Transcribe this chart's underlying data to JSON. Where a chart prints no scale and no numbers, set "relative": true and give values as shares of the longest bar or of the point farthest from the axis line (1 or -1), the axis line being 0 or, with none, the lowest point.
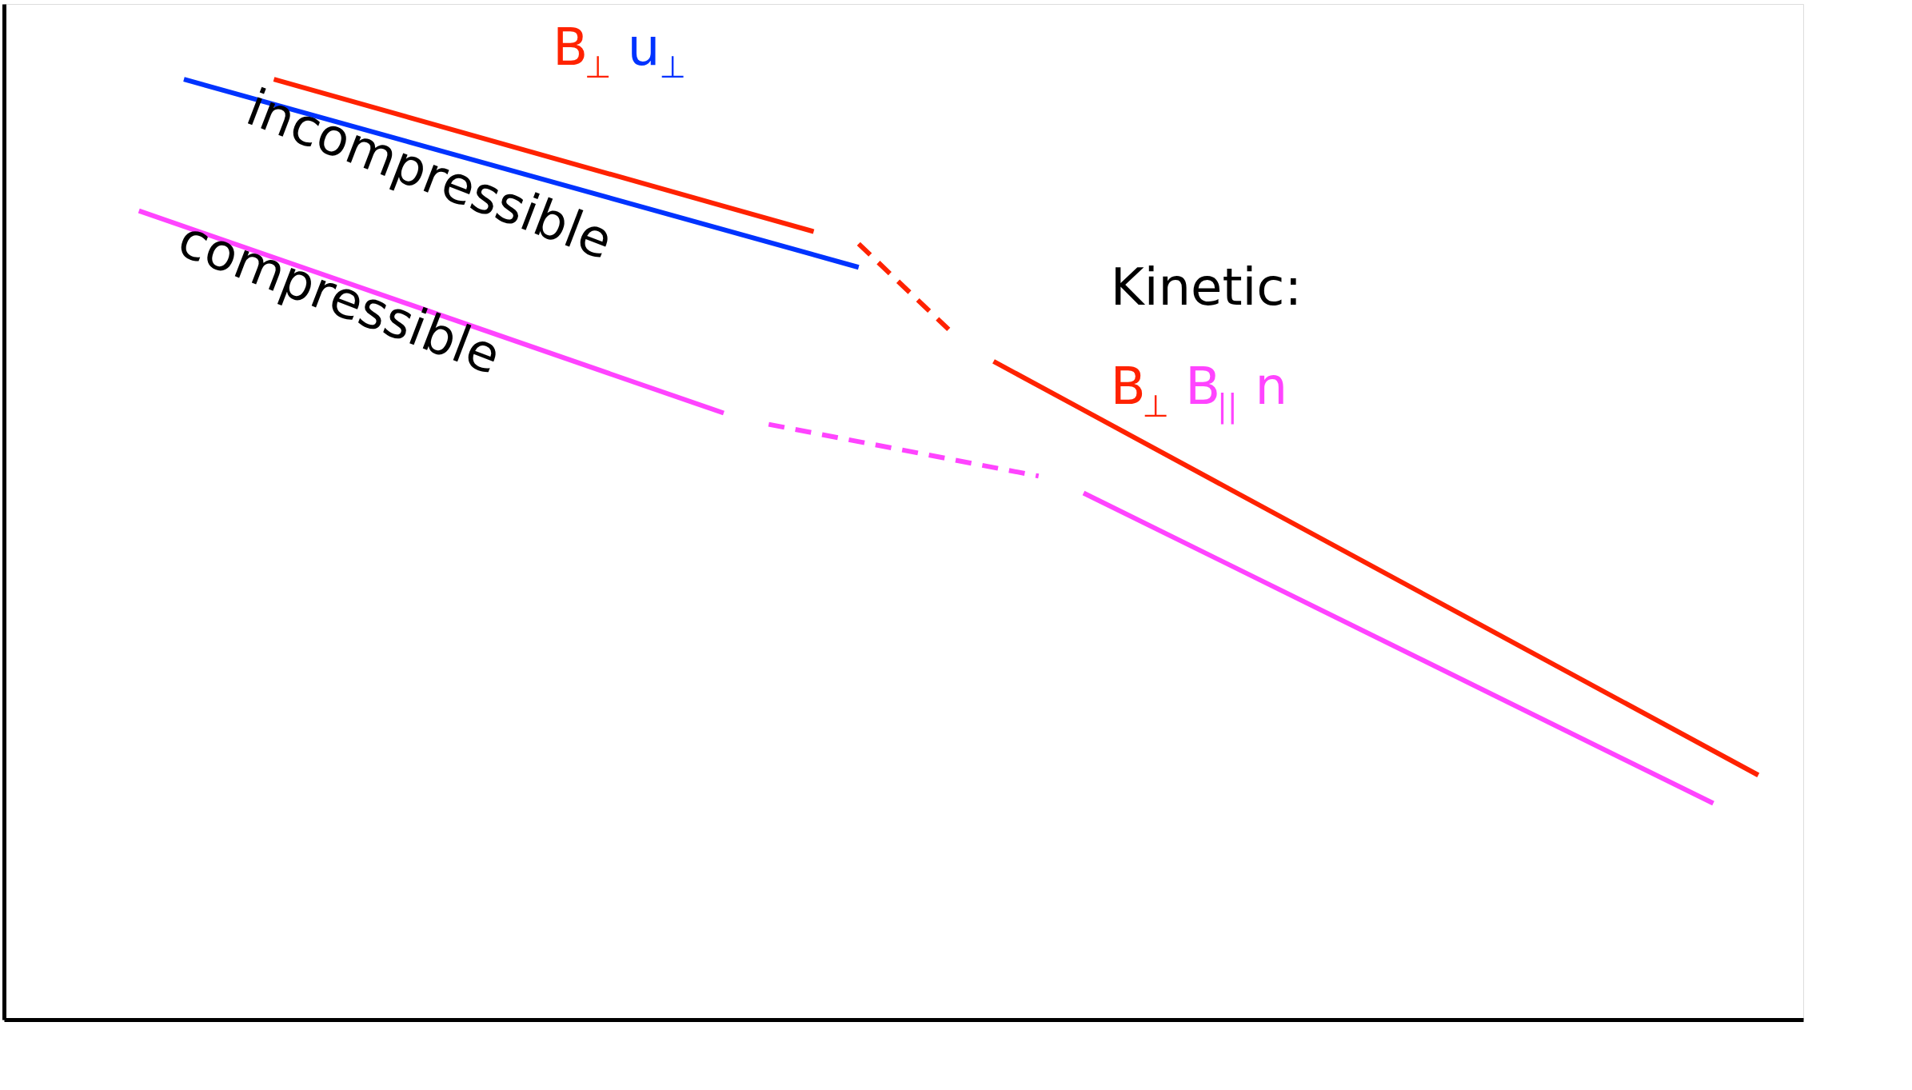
{
  "chart_data": {
    "type": "line",
    "relative": true,
    "tick_labels": false,
    "grid": false,
    "marker": "none",
    "categories": [
      null,
      null,
      null,
      null,
      null,
      null,
      null,
      null,
      null,
      null,
      null,
      null,
      null,
      null,
      null,
      null,
      null,
      null,
      null,
      null,
      null,
      null,
      null,
      null,
      null,
      null,
      null,
      null,
      null,
      null,
      null,
      null,
      null,
      null,
      null,
      null,
      null,
      null,
      null,
      null,
      null
    ],
    "series": [
      {
        "name": "B$_{⊥}$",
        "color": "#ff2200",
        "values": [
          null,
          null,
          null,
          null,
          null,
          null,
          1.0,
          null,
          null,
          null,
          null,
          null,
          null,
          null,
          null,
          null,
          null,
          null,
          0.838,
          null,
          null,
          null,
          null,
          null,
          null,
          null,
          null,
          null,
          null,
          null,
          null,
          null,
          null,
          null,
          null,
          null,
          null,
          null,
          null,
          null,
          null
        ]
      },
      {
        "color": "#ff2200",
        "line_style": "dashed",
        "values": [
          null,
          null,
          null,
          null,
          null,
          null,
          null,
          null,
          null,
          null,
          null,
          null,
          null,
          null,
          null,
          null,
          null,
          null,
          null,
          0.825,
          null,
          0.734,
          null,
          null,
          null,
          null,
          null,
          null,
          null,
          null,
          null,
          null,
          null,
          null,
          null,
          null,
          null,
          null,
          null,
          null,
          null
        ]
      },
      {
        "name": "B$_{⊥}$",
        "color": "#ff2200",
        "values": [
          null,
          null,
          null,
          null,
          null,
          null,
          null,
          null,
          null,
          null,
          null,
          null,
          null,
          null,
          null,
          null,
          null,
          null,
          null,
          null,
          null,
          null,
          0.7,
          null,
          null,
          null,
          null,
          null,
          null,
          null,
          null,
          null,
          null,
          null,
          null,
          null,
          null,
          null,
          null,
          0.26,
          null
        ]
      },
      {
        "name": "u$_{⊥}$",
        "color": "#0033ff",
        "values": [
          null,
          null,
          null,
          null,
          1.0,
          null,
          null,
          null,
          null,
          null,
          null,
          null,
          null,
          null,
          null,
          null,
          null,
          null,
          null,
          0.8,
          null,
          null,
          null,
          null,
          null,
          null,
          null,
          null,
          null,
          null,
          null,
          null,
          null,
          null,
          null,
          null,
          null,
          null,
          null,
          null,
          null
        ]
      },
      {
        "color": "#ff44ff",
        "values": [
          null,
          null,
          null,
          0.86,
          null,
          null,
          null,
          null,
          null,
          null,
          null,
          null,
          null,
          null,
          null,
          null,
          0.645,
          null,
          null,
          null,
          null,
          null,
          null,
          null,
          null,
          null,
          null,
          null,
          null,
          null,
          null,
          null,
          null,
          null,
          null,
          null,
          null,
          null,
          null,
          null,
          null
        ]
      },
      {
        "color": "#ff44ff",
        "line_style": "dashed",
        "values": [
          null,
          null,
          null,
          null,
          null,
          null,
          null,
          null,
          null,
          null,
          null,
          null,
          null,
          null,
          null,
          null,
          null,
          0.633,
          null,
          null,
          null,
          null,
          null,
          0.578,
          null,
          null,
          null,
          null,
          null,
          null,
          null,
          null,
          null,
          null,
          null,
          null,
          null,
          null,
          null,
          null,
          null
        ]
      },
      {
        "name": "B$_{||}$ n",
        "color": "#ff44ff",
        "values": [
          null,
          null,
          null,
          null,
          null,
          null,
          null,
          null,
          null,
          null,
          null,
          null,
          null,
          null,
          null,
          null,
          null,
          null,
          null,
          null,
          null,
          null,
          null,
          null,
          0.56,
          null,
          null,
          null,
          null,
          null,
          null,
          null,
          null,
          null,
          null,
          null,
          null,
          null,
          0.23,
          null,
          null
        ]
      }
    ],
    "annotations": [
      "incompressible",
      "compressible",
      "Kinetic:"
    ]
  }
}
